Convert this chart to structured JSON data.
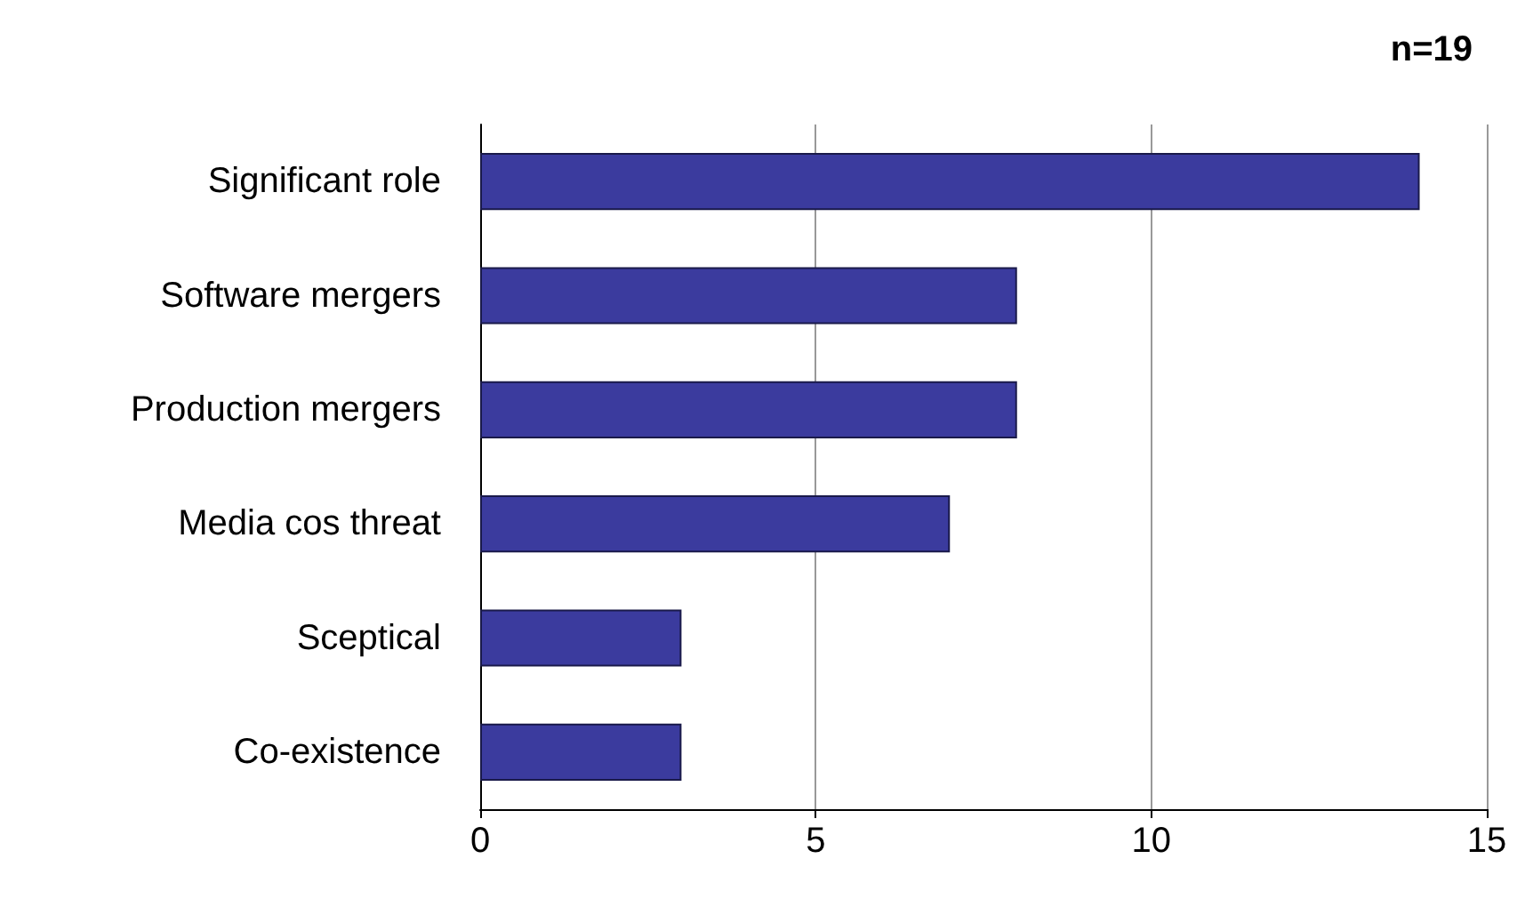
{
  "chart_data": {
    "type": "bar",
    "orientation": "horizontal",
    "categories": [
      "Significant role",
      "Software mergers",
      "Production mergers",
      "Media cos threat",
      "Sceptical",
      "Co-existence"
    ],
    "values": [
      14,
      8,
      8,
      7,
      3,
      3
    ],
    "color": "#3b3b9e",
    "xlim": [
      0,
      15
    ],
    "xticks": [
      0,
      5,
      10,
      15
    ],
    "grid": "x",
    "annotations": [
      "n=19"
    ]
  }
}
